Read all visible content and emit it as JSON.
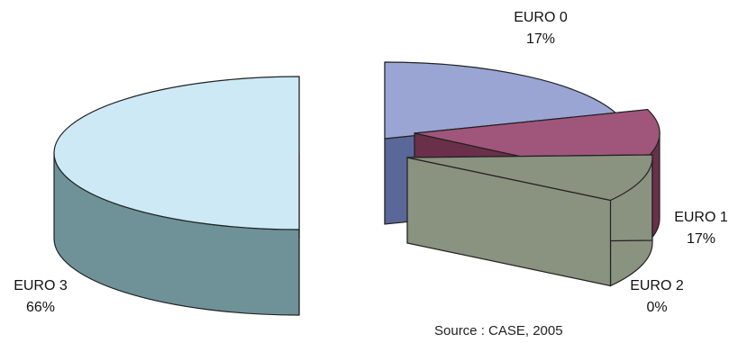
{
  "chart_data": {
    "type": "pie",
    "style": "3d-exploded",
    "categories": [
      "EURO 0",
      "EURO 1",
      "EURO 2",
      "EURO 3"
    ],
    "values": [
      17,
      17,
      0,
      66
    ],
    "value_labels": [
      "17%",
      "17%",
      "0%",
      "66%"
    ],
    "colors": {
      "EURO 0": {
        "top": "#9aa5d4",
        "side": "#5a6799"
      },
      "EURO 1": {
        "top": "#a0567a",
        "side": "#6a3049"
      },
      "EURO 2": {
        "top": "#8a9280",
        "side": "#8a9280"
      },
      "EURO 3": {
        "top": "#cce9f5",
        "side": "#6e9298"
      }
    },
    "source": "Source : CASE, 2005"
  }
}
